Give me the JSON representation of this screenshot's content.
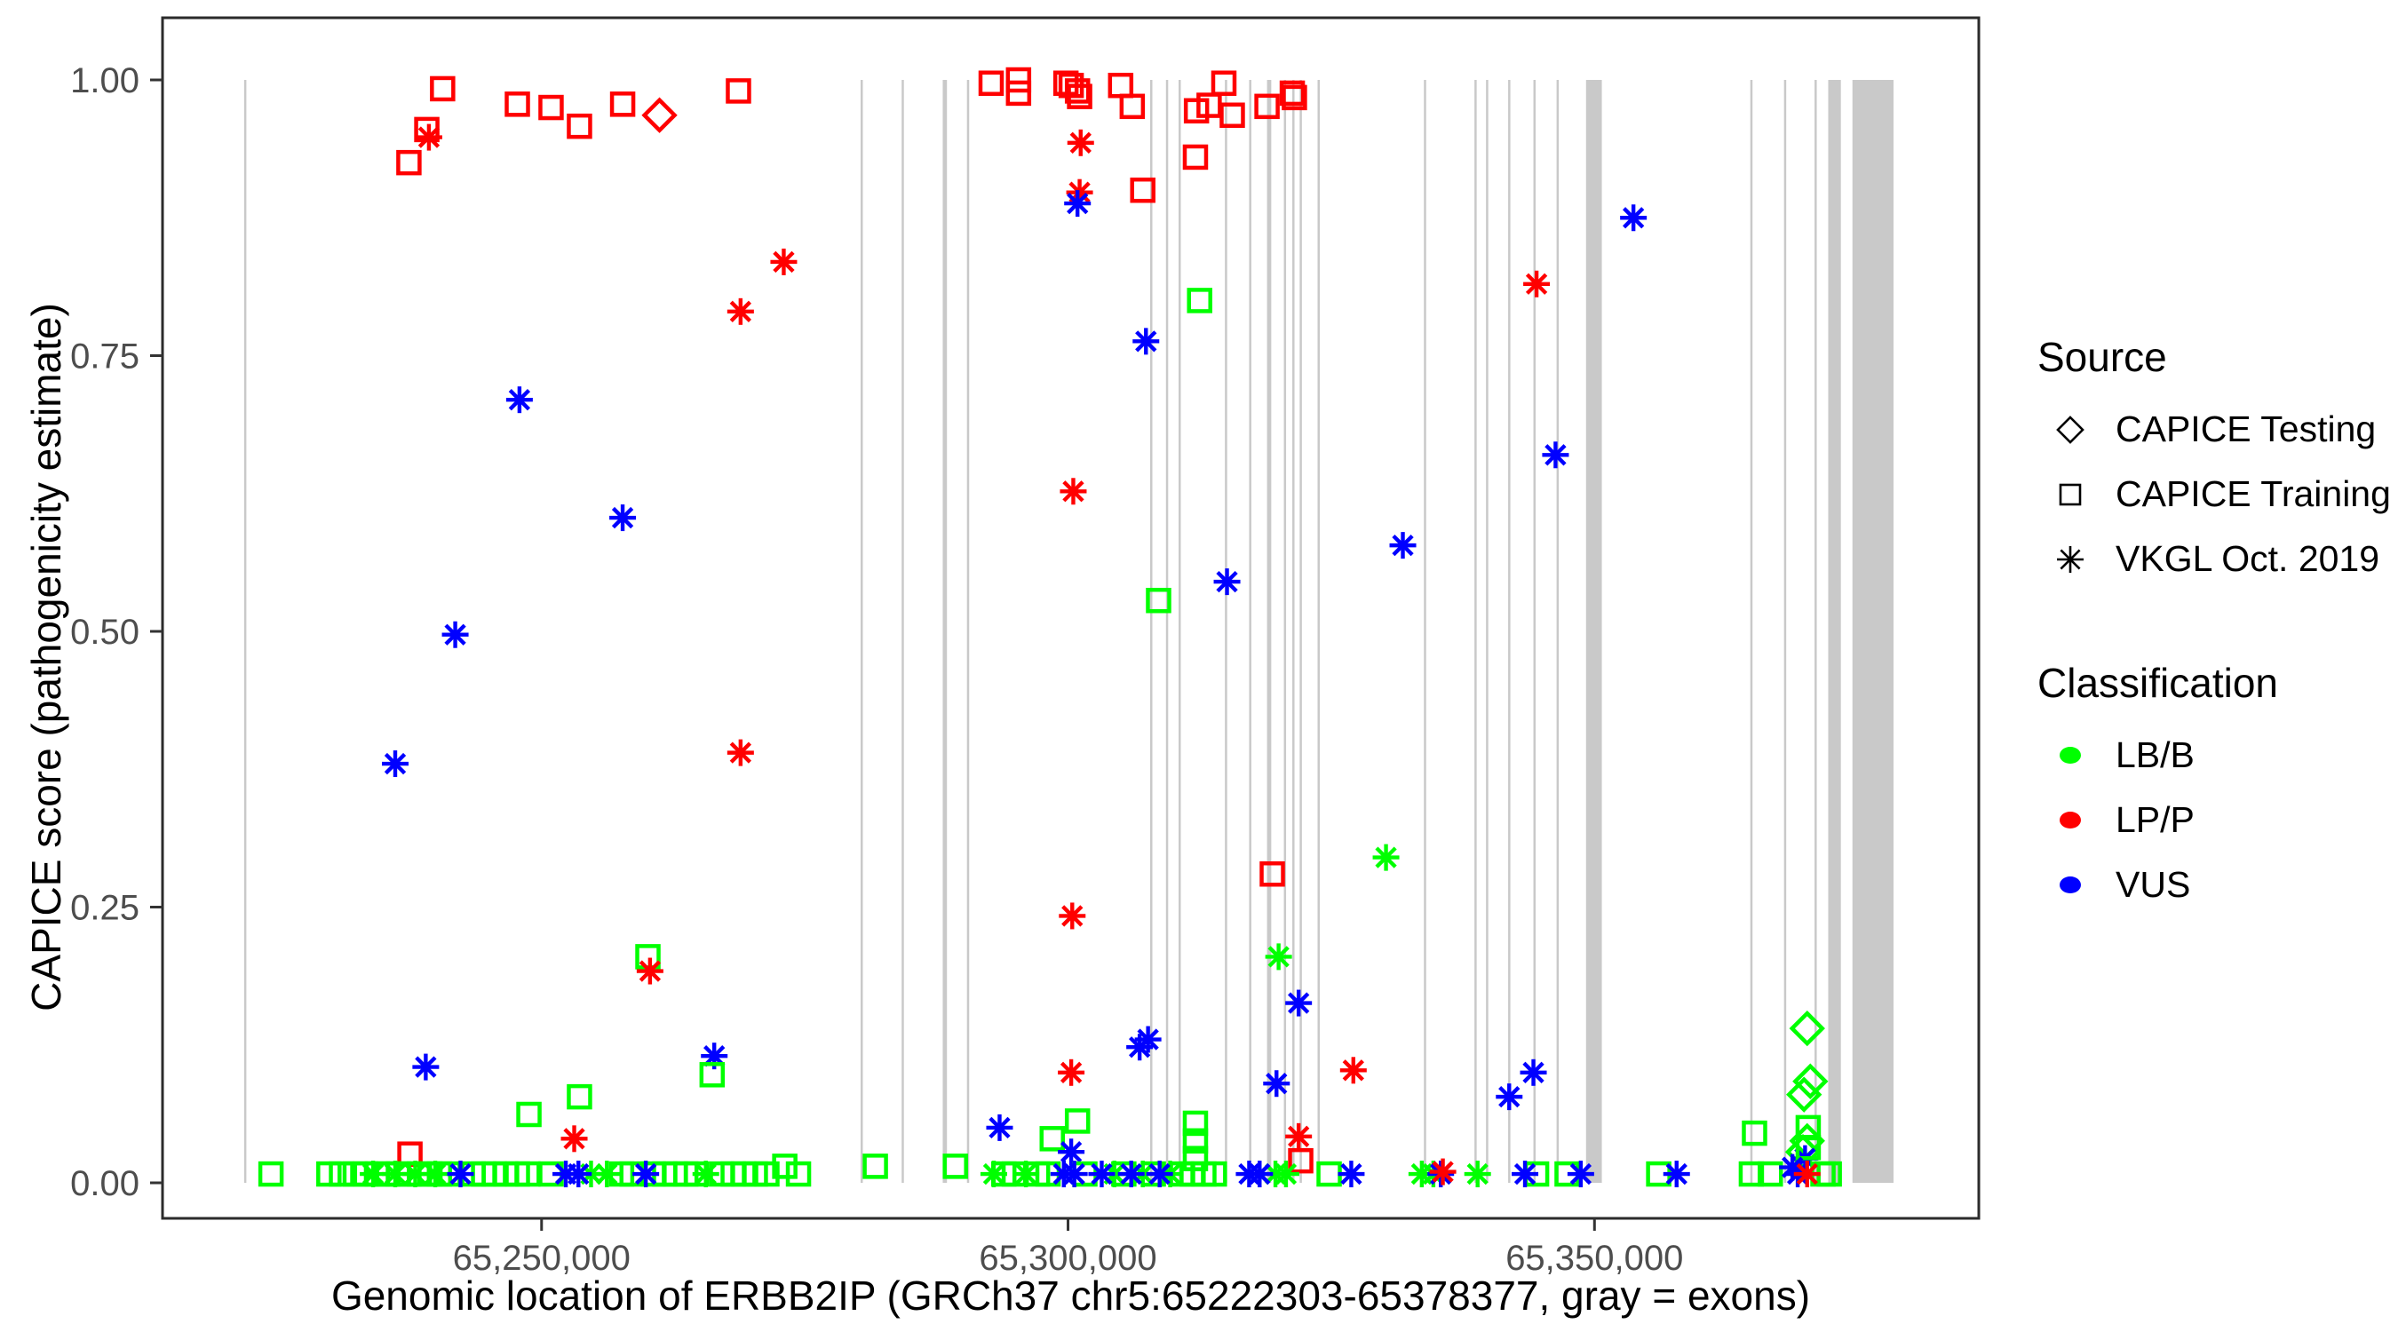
{
  "figure": {
    "x_title": "Genomic location of ERBB2IP (GRCh37 chr5:65222303-65378377, gray = exons)",
    "y_title": "CAPICE score (pathogenicity estimate)"
  },
  "legend": {
    "source": {
      "title": "Source",
      "items": [
        {
          "label": "CAPICE Testing",
          "marker": "diamond"
        },
        {
          "label": "CAPICE Training",
          "marker": "square"
        },
        {
          "label": "VKGL Oct. 2019",
          "marker": "asterisk"
        }
      ]
    },
    "classification": {
      "title": "Classification",
      "items": [
        {
          "label": "LB/B",
          "key": "g",
          "color": "#00FF00"
        },
        {
          "label": "LP/P",
          "key": "r",
          "color": "#FF0000"
        },
        {
          "label": "VUS",
          "key": "b",
          "color": "#0000FF"
        }
      ]
    }
  },
  "chart_data": {
    "type": "scatter",
    "title": "",
    "xlabel": "Genomic location of ERBB2IP (GRCh37 chr5:65222303-65378377, gray = exons)",
    "ylabel": "CAPICE score (pathogenicity estimate)",
    "x_domain": [
      65214000,
      65386500
    ],
    "y_domain": [
      0,
      1
    ],
    "grid": false,
    "legend_position": "right",
    "exon_color": "#c9c9c9",
    "class_colors": {
      "g": "#00FF00",
      "r": "#FF0000",
      "b": "#0000FF"
    },
    "marker_legend": {
      "d": "CAPICE Testing",
      "s": "CAPICE Training",
      "a": "VKGL Oct. 2019"
    },
    "x_ticks": [
      {
        "v": 65250000,
        "label": "65,250,000"
      },
      {
        "v": 65300000,
        "label": "65,300,000"
      },
      {
        "v": 65350000,
        "label": "65,350,000"
      }
    ],
    "y_ticks": [
      {
        "v": 0.0,
        "label": "0.00"
      },
      {
        "v": 0.25,
        "label": "0.25"
      },
      {
        "v": 0.5,
        "label": "0.50"
      },
      {
        "v": 0.75,
        "label": "0.75"
      },
      {
        "v": 1.0,
        "label": "1.00"
      }
    ],
    "exons": [
      [
        65221750,
        65221950
      ],
      [
        65280300,
        65280500
      ],
      [
        65284200,
        65284400
      ],
      [
        65288100,
        65288500
      ],
      [
        65290400,
        65290600
      ],
      [
        65307800,
        65308000
      ],
      [
        65309300,
        65309500
      ],
      [
        65310500,
        65310700
      ],
      [
        65314900,
        65315100
      ],
      [
        65317200,
        65317400
      ],
      [
        65318900,
        65319300
      ],
      [
        65320500,
        65320700
      ],
      [
        65321300,
        65321500
      ],
      [
        65322000,
        65322200
      ],
      [
        65323700,
        65323900
      ],
      [
        65333800,
        65334000
      ],
      [
        65338600,
        65338800
      ],
      [
        65339700,
        65339900
      ],
      [
        65341800,
        65342000
      ],
      [
        65344200,
        65344400
      ],
      [
        65346400,
        65346600
      ],
      [
        65349200,
        65350700
      ],
      [
        65364800,
        65365000
      ],
      [
        65368000,
        65368200
      ],
      [
        65370900,
        65371100
      ],
      [
        65372200,
        65373400
      ],
      [
        65374500,
        65378400
      ]
    ],
    "points": [
      [
        65237400,
        0.925,
        "s",
        "r"
      ],
      [
        65239100,
        0.955,
        "s",
        "r"
      ],
      [
        65239300,
        0.948,
        "a",
        "r"
      ],
      [
        65240600,
        0.992,
        "s",
        "r"
      ],
      [
        65247700,
        0.978,
        "s",
        "r"
      ],
      [
        65250900,
        0.975,
        "s",
        "r"
      ],
      [
        65253600,
        0.958,
        "s",
        "r"
      ],
      [
        65257700,
        0.978,
        "s",
        "r"
      ],
      [
        65261200,
        0.968,
        "d",
        "r"
      ],
      [
        65268700,
        0.99,
        "s",
        "r"
      ],
      [
        65273000,
        0.835,
        "a",
        "r"
      ],
      [
        65268900,
        0.79,
        "a",
        "r"
      ],
      [
        65247900,
        0.71,
        "a",
        "b"
      ],
      [
        65257700,
        0.603,
        "a",
        "b"
      ],
      [
        65241800,
        0.497,
        "a",
        "b"
      ],
      [
        65236100,
        0.38,
        "a",
        "b"
      ],
      [
        65268900,
        0.39,
        "a",
        "r"
      ],
      [
        65260100,
        0.205,
        "s",
        "g"
      ],
      [
        65260300,
        0.192,
        "a",
        "r"
      ],
      [
        65239000,
        0.105,
        "a",
        "b"
      ],
      [
        65253600,
        0.078,
        "s",
        "g"
      ],
      [
        65248800,
        0.062,
        "s",
        "g"
      ],
      [
        65253100,
        0.04,
        "a",
        "r"
      ],
      [
        65237500,
        0.026,
        "s",
        "r"
      ],
      [
        65266400,
        0.115,
        "a",
        "b"
      ],
      [
        65266200,
        0.098,
        "s",
        "g"
      ],
      [
        65292700,
        0.997,
        "s",
        "r"
      ],
      [
        65295300,
        1.0,
        "s",
        "r"
      ],
      [
        65295300,
        0.988,
        "s",
        "r"
      ],
      [
        65299800,
        0.997,
        "s",
        "r"
      ],
      [
        65300300,
        0.995,
        "s",
        "r"
      ],
      [
        65300900,
        0.99,
        "s",
        "r"
      ],
      [
        65301100,
        0.985,
        "s",
        "r"
      ],
      [
        65305000,
        0.995,
        "s",
        "r"
      ],
      [
        65306100,
        0.976,
        "s",
        "r"
      ],
      [
        65301200,
        0.943,
        "a",
        "r"
      ],
      [
        65301100,
        0.898,
        "a",
        "r"
      ],
      [
        65300900,
        0.888,
        "a",
        "b"
      ],
      [
        65307100,
        0.9,
        "s",
        "r"
      ],
      [
        65312100,
        0.93,
        "s",
        "r"
      ],
      [
        65312200,
        0.972,
        "s",
        "r"
      ],
      [
        65313400,
        0.977,
        "s",
        "r"
      ],
      [
        65314800,
        0.997,
        "s",
        "r"
      ],
      [
        65315600,
        0.968,
        "s",
        "r"
      ],
      [
        65318900,
        0.976,
        "s",
        "r"
      ],
      [
        65321300,
        0.988,
        "s",
        "r"
      ],
      [
        65321500,
        0.984,
        "s",
        "r"
      ],
      [
        65312500,
        0.8,
        "s",
        "g"
      ],
      [
        65307400,
        0.763,
        "a",
        "b"
      ],
      [
        65300500,
        0.627,
        "a",
        "r"
      ],
      [
        65315100,
        0.545,
        "a",
        "b"
      ],
      [
        65308600,
        0.528,
        "s",
        "g"
      ],
      [
        65319400,
        0.28,
        "s",
        "r"
      ],
      [
        65330200,
        0.295,
        "a",
        "g"
      ],
      [
        65300400,
        0.242,
        "a",
        "r"
      ],
      [
        65320000,
        0.205,
        "a",
        "g"
      ],
      [
        65321900,
        0.163,
        "a",
        "b"
      ],
      [
        65306800,
        0.123,
        "a",
        "b"
      ],
      [
        65307600,
        0.13,
        "a",
        "b"
      ],
      [
        65300300,
        0.1,
        "a",
        "r"
      ],
      [
        65319800,
        0.09,
        "a",
        "b"
      ],
      [
        65327100,
        0.102,
        "a",
        "r"
      ],
      [
        65321900,
        0.042,
        "a",
        "r"
      ],
      [
        65322100,
        0.02,
        "s",
        "r"
      ],
      [
        65300900,
        0.056,
        "s",
        "g"
      ],
      [
        65298500,
        0.04,
        "s",
        "g"
      ],
      [
        65312100,
        0.054,
        "s",
        "g"
      ],
      [
        65312100,
        0.038,
        "s",
        "g"
      ],
      [
        65312100,
        0.022,
        "s",
        "g"
      ],
      [
        65293500,
        0.05,
        "a",
        "b"
      ],
      [
        65300300,
        0.028,
        "a",
        "b"
      ],
      [
        65273100,
        0.015,
        "s",
        "g"
      ],
      [
        65281700,
        0.015,
        "s",
        "g"
      ],
      [
        65289300,
        0.015,
        "s",
        "g"
      ],
      [
        65353700,
        0.875,
        "a",
        "b"
      ],
      [
        65344500,
        0.815,
        "a",
        "r"
      ],
      [
        65346300,
        0.66,
        "a",
        "b"
      ],
      [
        65331800,
        0.578,
        "a",
        "b"
      ],
      [
        65344200,
        0.1,
        "a",
        "b"
      ],
      [
        65341900,
        0.078,
        "a",
        "b"
      ],
      [
        65370200,
        0.14,
        "d",
        "g"
      ],
      [
        65370500,
        0.092,
        "d",
        "g"
      ],
      [
        65369900,
        0.08,
        "d",
        "g"
      ],
      [
        65365200,
        0.045,
        "s",
        "g"
      ],
      [
        65370200,
        0.038,
        "d",
        "g"
      ],
      [
        65369800,
        0.028,
        "d",
        "g"
      ],
      [
        65370000,
        0.022,
        "a",
        "b"
      ],
      [
        65370300,
        0.05,
        "s",
        "g"
      ],
      [
        65370300,
        0.032,
        "s",
        "g"
      ],
      [
        65224300,
        0.008,
        "s",
        "g"
      ],
      [
        65229800,
        0.008,
        "s",
        "g"
      ],
      [
        65231000,
        0.008,
        "s",
        "g"
      ],
      [
        65232300,
        0.008,
        "s",
        "g"
      ],
      [
        65233300,
        0.008,
        "s",
        "g"
      ],
      [
        65234400,
        0.008,
        "s",
        "g"
      ],
      [
        65235400,
        0.008,
        "s",
        "g"
      ],
      [
        65236400,
        0.008,
        "s",
        "g"
      ],
      [
        65237400,
        0.008,
        "s",
        "g"
      ],
      [
        65238400,
        0.008,
        "s",
        "g"
      ],
      [
        65239400,
        0.008,
        "s",
        "g"
      ],
      [
        65240300,
        0.008,
        "s",
        "g"
      ],
      [
        65241200,
        0.008,
        "s",
        "g"
      ],
      [
        65243500,
        0.008,
        "s",
        "g"
      ],
      [
        65244500,
        0.008,
        "s",
        "g"
      ],
      [
        65245500,
        0.008,
        "s",
        "g"
      ],
      [
        65246600,
        0.008,
        "s",
        "g"
      ],
      [
        65247700,
        0.008,
        "s",
        "g"
      ],
      [
        65248700,
        0.008,
        "s",
        "g"
      ],
      [
        65250900,
        0.008,
        "s",
        "g"
      ],
      [
        65257600,
        0.008,
        "s",
        "g"
      ],
      [
        65258600,
        0.008,
        "s",
        "g"
      ],
      [
        65260600,
        0.008,
        "s",
        "g"
      ],
      [
        65261700,
        0.008,
        "s",
        "g"
      ],
      [
        65262700,
        0.008,
        "s",
        "g"
      ],
      [
        65263700,
        0.008,
        "s",
        "g"
      ],
      [
        65264700,
        0.008,
        "s",
        "g"
      ],
      [
        65267100,
        0.008,
        "s",
        "g"
      ],
      [
        65268200,
        0.008,
        "s",
        "g"
      ],
      [
        65269200,
        0.008,
        "s",
        "g"
      ],
      [
        65270300,
        0.008,
        "s",
        "g"
      ],
      [
        65271400,
        0.008,
        "s",
        "g"
      ],
      [
        65274400,
        0.008,
        "s",
        "g"
      ],
      [
        65293900,
        0.008,
        "s",
        "g"
      ],
      [
        65294900,
        0.008,
        "s",
        "g"
      ],
      [
        65297100,
        0.008,
        "s",
        "g"
      ],
      [
        65298100,
        0.008,
        "s",
        "g"
      ],
      [
        65301600,
        0.008,
        "s",
        "g"
      ],
      [
        65305300,
        0.008,
        "s",
        "g"
      ],
      [
        65308100,
        0.008,
        "s",
        "g"
      ],
      [
        65310800,
        0.008,
        "s",
        "g"
      ],
      [
        65311800,
        0.008,
        "s",
        "g"
      ],
      [
        65312900,
        0.008,
        "s",
        "g"
      ],
      [
        65313900,
        0.008,
        "s",
        "g"
      ],
      [
        65324800,
        0.008,
        "s",
        "g"
      ],
      [
        65344500,
        0.008,
        "s",
        "g"
      ],
      [
        65347400,
        0.008,
        "s",
        "g"
      ],
      [
        65356100,
        0.008,
        "s",
        "g"
      ],
      [
        65364900,
        0.008,
        "s",
        "g"
      ],
      [
        65366700,
        0.008,
        "s",
        "g"
      ],
      [
        65371700,
        0.008,
        "s",
        "g"
      ],
      [
        65372300,
        0.008,
        "s",
        "g"
      ],
      [
        65234000,
        0.008,
        "a",
        "g"
      ],
      [
        65236100,
        0.008,
        "a",
        "g"
      ],
      [
        65238000,
        0.008,
        "a",
        "g"
      ],
      [
        65239900,
        0.008,
        "a",
        "g"
      ],
      [
        65254700,
        0.008,
        "a",
        "g"
      ],
      [
        65256200,
        0.008,
        "a",
        "g"
      ],
      [
        65265600,
        0.008,
        "a",
        "g"
      ],
      [
        65292950,
        0.008,
        "a",
        "g"
      ],
      [
        65296000,
        0.008,
        "a",
        "g"
      ],
      [
        65304400,
        0.008,
        "a",
        "g"
      ],
      [
        65307100,
        0.008,
        "a",
        "g"
      ],
      [
        65309700,
        0.008,
        "a",
        "g"
      ],
      [
        65319700,
        0.008,
        "a",
        "g"
      ],
      [
        65320700,
        0.008,
        "a",
        "g"
      ],
      [
        65333600,
        0.008,
        "a",
        "g"
      ],
      [
        65334700,
        0.008,
        "a",
        "g"
      ],
      [
        65338900,
        0.008,
        "a",
        "g"
      ],
      [
        65242300,
        0.008,
        "a",
        "b"
      ],
      [
        65252300,
        0.008,
        "a",
        "b"
      ],
      [
        65253500,
        0.008,
        "a",
        "b"
      ],
      [
        65259900,
        0.008,
        "a",
        "b"
      ],
      [
        65299600,
        0.008,
        "a",
        "b"
      ],
      [
        65300600,
        0.008,
        "a",
        "b"
      ],
      [
        65303200,
        0.008,
        "a",
        "b"
      ],
      [
        65306000,
        0.008,
        "a",
        "b"
      ],
      [
        65308700,
        0.008,
        "a",
        "b"
      ],
      [
        65317200,
        0.008,
        "a",
        "b"
      ],
      [
        65318200,
        0.008,
        "a",
        "b"
      ],
      [
        65326900,
        0.008,
        "a",
        "b"
      ],
      [
        65335400,
        0.008,
        "a",
        "b"
      ],
      [
        65343400,
        0.008,
        "a",
        "b"
      ],
      [
        65348700,
        0.008,
        "a",
        "b"
      ],
      [
        65357800,
        0.008,
        "a",
        "b"
      ],
      [
        65368800,
        0.014,
        "a",
        "b"
      ],
      [
        65369300,
        0.008,
        "a",
        "b"
      ],
      [
        65335600,
        0.01,
        "a",
        "r"
      ],
      [
        65370200,
        0.008,
        "a",
        "r"
      ]
    ]
  }
}
